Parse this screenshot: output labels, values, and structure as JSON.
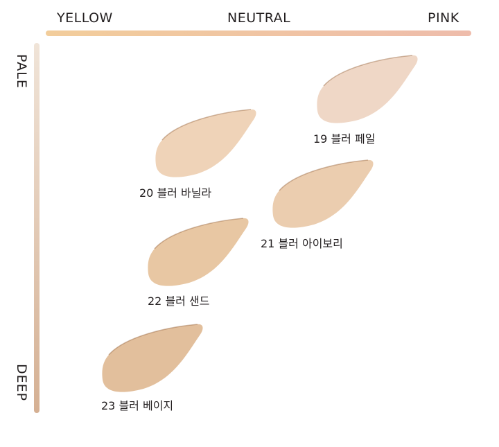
{
  "axes": {
    "x_left": "YELLOW",
    "x_center": "NEUTRAL",
    "x_right": "PINK",
    "y_top": "PALE",
    "y_bottom": "DEEP",
    "x_gradient": [
      "#f2cd9b",
      "#eebcab"
    ],
    "y_gradient": [
      "#f0e4d8",
      "#d5b093"
    ]
  },
  "shades": [
    {
      "label": "19 블러 페일",
      "color": "#efd7c6"
    },
    {
      "label": "20 블러 바닐라",
      "color": "#efd3b8"
    },
    {
      "label": "21 블러 아이보리",
      "color": "#ebcdaf"
    },
    {
      "label": "22 블러 샌드",
      "color": "#e8c7a3"
    },
    {
      "label": "23 블러 베이지",
      "color": "#e2bf9c"
    }
  ]
}
